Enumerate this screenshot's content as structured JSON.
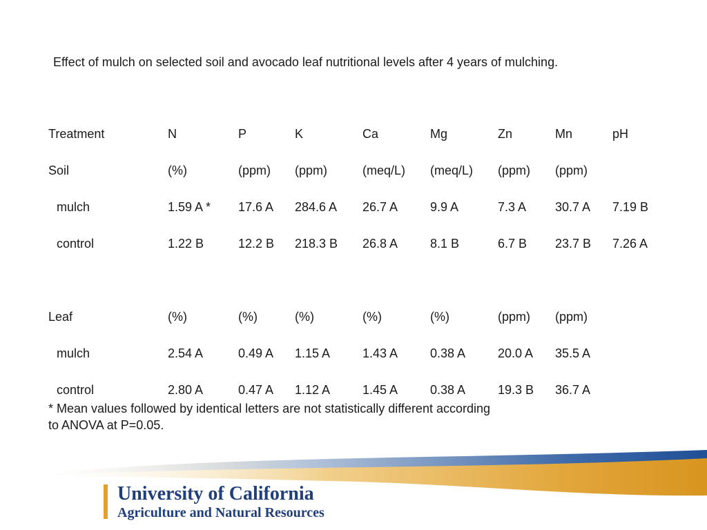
{
  "title": "Effect of mulch on selected soil and avocado leaf nutritional levels after 4 years of mulching.",
  "table": {
    "headers": [
      "Treatment",
      "N",
      "P",
      "K",
      "Ca",
      "Mg",
      "Zn",
      "Mn",
      "pH"
    ],
    "soil_units": [
      "Soil",
      "(%)",
      "(ppm)",
      "(ppm)",
      "(meq/L)",
      "(meq/L)",
      "(ppm)",
      "(ppm)",
      ""
    ],
    "soil_mulch": [
      "mulch",
      "1.59 A *",
      "17.6 A",
      "284.6 A",
      "26.7 A",
      "9.9 A",
      "7.3 A",
      "30.7 A",
      "7.19 B"
    ],
    "soil_control": [
      "control",
      "1.22 B",
      "12.2 B",
      "218.3 B",
      "26.8 A",
      "8.1 B",
      "6.7 B",
      "23.7 B",
      "7.26 A"
    ],
    "leaf_units": [
      "Leaf",
      "(%)",
      "(%)",
      "(%)",
      "(%)",
      "(%)",
      "(ppm)",
      "(ppm)",
      ""
    ],
    "leaf_mulch": [
      "mulch",
      "2.54 A",
      "0.49 A",
      "1.15 A",
      "1.43 A",
      "0.38 A",
      "20.0 A",
      "35.5 A",
      ""
    ],
    "leaf_control": [
      "control",
      "2.80 A",
      "0.47 A",
      "1.12 A",
      "1.45 A",
      "0.38 A",
      "19.3 B",
      "36.7 A",
      ""
    ]
  },
  "footnote": "* Mean values followed by identical letters are not statistically different according to ANOVA at P=0.05.",
  "logo": {
    "line1": "University of California",
    "line2": "Agriculture and Natural Resources"
  },
  "colors": {
    "brand_blue": "#1f3e7a",
    "brand_gold": "#e0a22b"
  }
}
